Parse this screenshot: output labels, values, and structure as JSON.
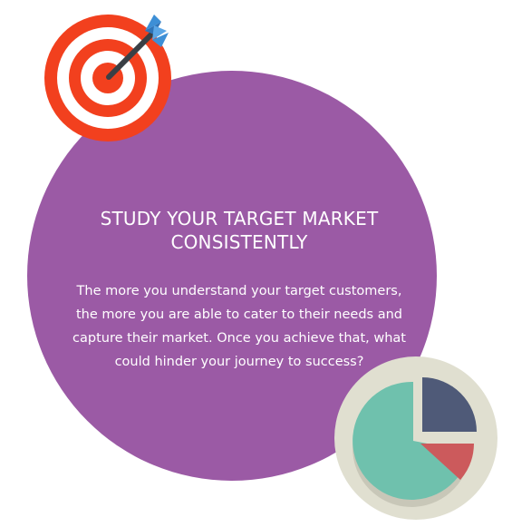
{
  "card": {
    "title_line1": "STUDY YOUR TARGET MARKET",
    "title_line2": "CONSISTENTLY",
    "body_line1": "The more you understand your target customers,",
    "body_line2": "the more you are able to cater to their needs and",
    "body_line3": "capture their market. Once you achieve that, what",
    "body_line4": "could hinder your journey to success?"
  },
  "icons": {
    "target": "target-arrow-icon",
    "pie": "pie-chart-icon"
  },
  "colors": {
    "circle": "#9b5aa5",
    "target_red": "#f2401e",
    "arrow_blue": "#3d8fd6",
    "pie_bg": "#e0dfd0",
    "pie_green": "#6fc1ad",
    "pie_navy": "#4f5a78",
    "pie_red": "#cc5a5c"
  }
}
